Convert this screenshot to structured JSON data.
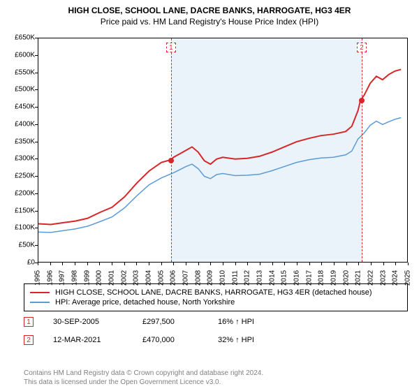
{
  "title_line1": "HIGH CLOSE, SCHOOL LANE, DACRE BANKS, HARROGATE, HG3 4ER",
  "title_line2": "Price paid vs. HM Land Registry's House Price Index (HPI)",
  "chart": {
    "type": "line",
    "plot_bg": "#ffffff",
    "shaded_bg": "#eaf2fa",
    "grid_color": "#000000",
    "x_min": 1995,
    "x_max": 2025,
    "y_min": 0,
    "y_max": 650000,
    "y_ticks": [
      0,
      50000,
      100000,
      150000,
      200000,
      250000,
      300000,
      350000,
      400000,
      450000,
      500000,
      550000,
      600000,
      650000
    ],
    "y_tick_labels": [
      "£0",
      "£50K",
      "£100K",
      "£150K",
      "£200K",
      "£250K",
      "£300K",
      "£350K",
      "£400K",
      "£450K",
      "£500K",
      "£550K",
      "£600K",
      "£650K"
    ],
    "x_ticks": [
      1995,
      1996,
      1997,
      1998,
      1999,
      2000,
      2001,
      2002,
      2003,
      2004,
      2005,
      2006,
      2007,
      2008,
      2009,
      2010,
      2011,
      2012,
      2013,
      2014,
      2015,
      2016,
      2017,
      2018,
      2019,
      2020,
      2021,
      2022,
      2023,
      2024,
      2025
    ],
    "series": [
      {
        "name": "property",
        "color": "#d62728",
        "width": 2,
        "points": [
          [
            1995,
            112000
          ],
          [
            1996,
            110000
          ],
          [
            1997,
            115000
          ],
          [
            1998,
            120000
          ],
          [
            1999,
            128000
          ],
          [
            2000,
            145000
          ],
          [
            2001,
            160000
          ],
          [
            2002,
            190000
          ],
          [
            2003,
            230000
          ],
          [
            2004,
            265000
          ],
          [
            2005,
            290000
          ],
          [
            2005.75,
            297500
          ],
          [
            2006,
            305000
          ],
          [
            2007,
            325000
          ],
          [
            2007.5,
            335000
          ],
          [
            2008,
            320000
          ],
          [
            2008.5,
            295000
          ],
          [
            2009,
            285000
          ],
          [
            2009.5,
            300000
          ],
          [
            2010,
            305000
          ],
          [
            2011,
            300000
          ],
          [
            2012,
            302000
          ],
          [
            2013,
            308000
          ],
          [
            2014,
            320000
          ],
          [
            2015,
            335000
          ],
          [
            2016,
            350000
          ],
          [
            2017,
            360000
          ],
          [
            2018,
            368000
          ],
          [
            2019,
            372000
          ],
          [
            2020,
            380000
          ],
          [
            2020.5,
            395000
          ],
          [
            2021,
            440000
          ],
          [
            2021.2,
            470000
          ],
          [
            2021.5,
            485000
          ],
          [
            2022,
            520000
          ],
          [
            2022.5,
            540000
          ],
          [
            2023,
            530000
          ],
          [
            2023.5,
            545000
          ],
          [
            2024,
            555000
          ],
          [
            2024.5,
            560000
          ]
        ]
      },
      {
        "name": "hpi",
        "color": "#5b9bd5",
        "width": 1.5,
        "points": [
          [
            1995,
            88000
          ],
          [
            1996,
            87000
          ],
          [
            1997,
            92000
          ],
          [
            1998,
            97000
          ],
          [
            1999,
            105000
          ],
          [
            2000,
            118000
          ],
          [
            2001,
            132000
          ],
          [
            2002,
            158000
          ],
          [
            2003,
            193000
          ],
          [
            2004,
            225000
          ],
          [
            2005,
            245000
          ],
          [
            2006,
            260000
          ],
          [
            2007,
            278000
          ],
          [
            2007.5,
            285000
          ],
          [
            2008,
            272000
          ],
          [
            2008.5,
            250000
          ],
          [
            2009,
            243000
          ],
          [
            2009.5,
            255000
          ],
          [
            2010,
            258000
          ],
          [
            2011,
            252000
          ],
          [
            2012,
            253000
          ],
          [
            2013,
            256000
          ],
          [
            2014,
            266000
          ],
          [
            2015,
            278000
          ],
          [
            2016,
            290000
          ],
          [
            2017,
            298000
          ],
          [
            2018,
            303000
          ],
          [
            2019,
            305000
          ],
          [
            2020,
            312000
          ],
          [
            2020.5,
            323000
          ],
          [
            2021,
            358000
          ],
          [
            2021.5,
            375000
          ],
          [
            2022,
            398000
          ],
          [
            2022.5,
            410000
          ],
          [
            2023,
            400000
          ],
          [
            2023.5,
            408000
          ],
          [
            2024,
            415000
          ],
          [
            2024.5,
            420000
          ]
        ]
      }
    ],
    "sales": [
      {
        "n": "1",
        "year": 2005.75,
        "price": 297500,
        "box_color": "#d62728"
      },
      {
        "n": "2",
        "year": 2021.2,
        "price": 470000,
        "box_color": "#d62728"
      }
    ]
  },
  "legend": {
    "items": [
      {
        "color": "#d62728",
        "label": "HIGH CLOSE, SCHOOL LANE, DACRE BANKS, HARROGATE, HG3 4ER (detached house)"
      },
      {
        "color": "#5b9bd5",
        "label": "HPI: Average price, detached house, North Yorkshire"
      }
    ]
  },
  "sale_rows": [
    {
      "n": "1",
      "box_color": "#d62728",
      "date": "30-SEP-2005",
      "price": "£297,500",
      "delta": "16% ↑ HPI"
    },
    {
      "n": "2",
      "box_color": "#d62728",
      "date": "12-MAR-2021",
      "price": "£470,000",
      "delta": "32% ↑ HPI"
    }
  ],
  "footer_line1": "Contains HM Land Registry data © Crown copyright and database right 2024.",
  "footer_line2": "This data is licensed under the Open Government Licence v3.0."
}
